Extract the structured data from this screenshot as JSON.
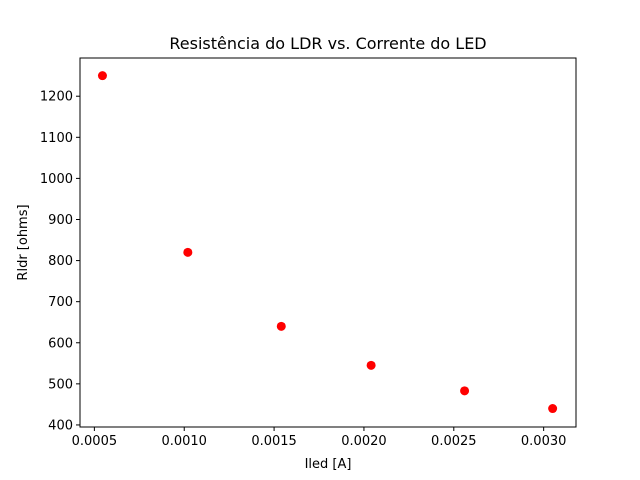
{
  "chart_data": {
    "type": "scatter",
    "title": "Resistência do LDR vs. Corrente do LED",
    "xlabel": "Iled [A]",
    "ylabel": "Rldr [ohms]",
    "xlim": [
      0.00042,
      0.00318
    ],
    "ylim": [
      395,
      1293
    ],
    "x_ticks": [
      {
        "value": 0.0005,
        "label": "0.0005"
      },
      {
        "value": 0.001,
        "label": "0.0010"
      },
      {
        "value": 0.0015,
        "label": "0.0015"
      },
      {
        "value": 0.002,
        "label": "0.0020"
      },
      {
        "value": 0.0025,
        "label": "0.0025"
      },
      {
        "value": 0.003,
        "label": "0.0030"
      }
    ],
    "y_ticks": [
      {
        "value": 400,
        "label": "400"
      },
      {
        "value": 500,
        "label": "500"
      },
      {
        "value": 600,
        "label": "600"
      },
      {
        "value": 700,
        "label": "700"
      },
      {
        "value": 800,
        "label": "800"
      },
      {
        "value": 900,
        "label": "900"
      },
      {
        "value": 1000,
        "label": "1000"
      },
      {
        "value": 1100,
        "label": "1100"
      },
      {
        "value": 1200,
        "label": "1200"
      }
    ],
    "grid": false,
    "legend": "none",
    "series": [
      {
        "color": "#ff0000",
        "marker": "circle",
        "points": [
          {
            "x": 0.000545,
            "y": 1250
          },
          {
            "x": 0.00102,
            "y": 820
          },
          {
            "x": 0.00154,
            "y": 640
          },
          {
            "x": 0.00204,
            "y": 545
          },
          {
            "x": 0.00256,
            "y": 483
          },
          {
            "x": 0.00305,
            "y": 440
          }
        ]
      }
    ]
  }
}
